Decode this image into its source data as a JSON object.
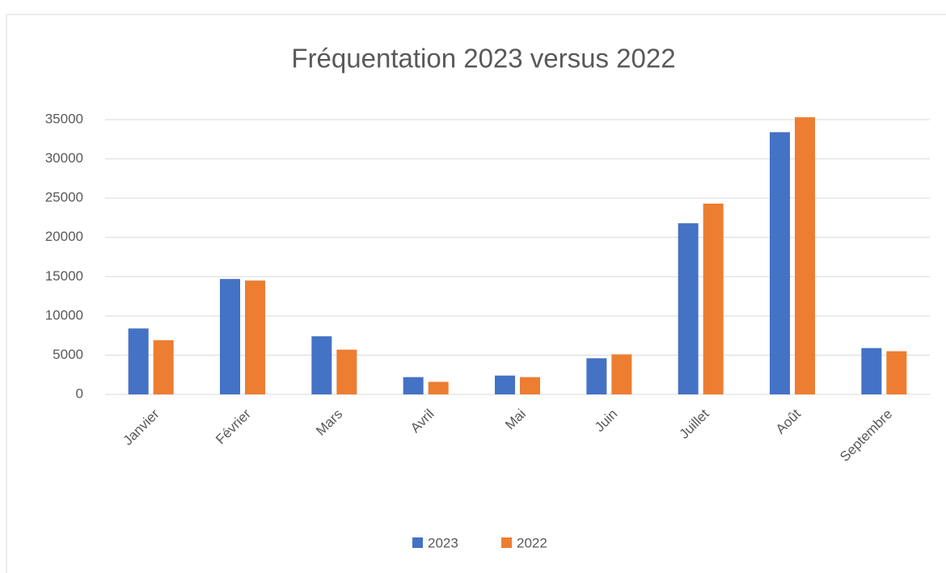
{
  "chart_data": {
    "type": "bar",
    "title": "Fréquentation 2023 versus 2022",
    "categories": [
      "Janvier",
      "Février",
      "Mars",
      "Avril",
      "Mai",
      "Juin",
      "Juillet",
      "Août",
      "Septembre"
    ],
    "series": [
      {
        "name": "2023",
        "color": "#4472c4",
        "values": [
          8400,
          14700,
          7400,
          2200,
          2400,
          4600,
          21800,
          33400,
          5900
        ]
      },
      {
        "name": "2022",
        "color": "#ed7d31",
        "values": [
          6900,
          14500,
          5700,
          1600,
          2200,
          5100,
          24300,
          35300,
          5500
        ]
      }
    ],
    "ylim": [
      0,
      35000
    ],
    "yticks": [
      0,
      5000,
      10000,
      15000,
      20000,
      25000,
      30000,
      35000
    ],
    "grid": true,
    "legend": "bottom"
  }
}
